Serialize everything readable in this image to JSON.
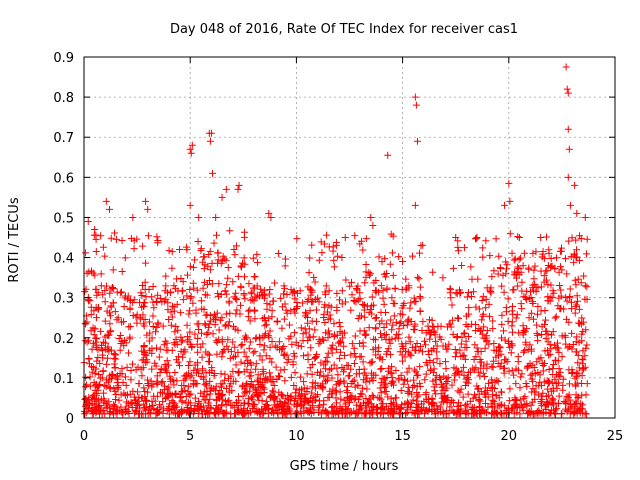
{
  "chart_data": {
    "type": "scatter",
    "title": "Day 048 of 2016, Rate Of TEC Index for receiver cas1",
    "xlabel": "GPS time / hours",
    "ylabel": "ROTI / TECUs",
    "xlim": [
      0,
      25
    ],
    "ylim": [
      0,
      0.9
    ],
    "xticks": [
      0,
      5,
      10,
      15,
      20,
      25
    ],
    "yticks": [
      0,
      0.1,
      0.2,
      0.3,
      0.4,
      0.5,
      0.6,
      0.7,
      0.8,
      0.9
    ],
    "ytick_labels": [
      "0",
      "0.1",
      "0.2",
      "0.3",
      "0.4",
      "0.5",
      "0.6",
      "0.7",
      "0.8",
      "0.9"
    ],
    "grid": true,
    "marker": "+",
    "marker_color": "#ff0000",
    "series": [
      {
        "name": "cas1 ROTI",
        "notable_points": [
          {
            "x": 0.2,
            "y": 0.49
          },
          {
            "x": 0.5,
            "y": 0.47
          },
          {
            "x": 1.05,
            "y": 0.54
          },
          {
            "x": 1.2,
            "y": 0.52
          },
          {
            "x": 2.3,
            "y": 0.5
          },
          {
            "x": 2.9,
            "y": 0.54
          },
          {
            "x": 3.0,
            "y": 0.52
          },
          {
            "x": 4.5,
            "y": 0.42
          },
          {
            "x": 5.0,
            "y": 0.67
          },
          {
            "x": 5.05,
            "y": 0.66
          },
          {
            "x": 5.1,
            "y": 0.68
          },
          {
            "x": 5.0,
            "y": 0.53
          },
          {
            "x": 5.4,
            "y": 0.5
          },
          {
            "x": 5.9,
            "y": 0.71
          },
          {
            "x": 6.0,
            "y": 0.71
          },
          {
            "x": 5.95,
            "y": 0.69
          },
          {
            "x": 6.05,
            "y": 0.61
          },
          {
            "x": 6.2,
            "y": 0.5
          },
          {
            "x": 6.5,
            "y": 0.55
          },
          {
            "x": 6.7,
            "y": 0.57
          },
          {
            "x": 7.3,
            "y": 0.58
          },
          {
            "x": 7.25,
            "y": 0.57
          },
          {
            "x": 8.7,
            "y": 0.51
          },
          {
            "x": 8.8,
            "y": 0.5
          },
          {
            "x": 12.3,
            "y": 0.45
          },
          {
            "x": 13.5,
            "y": 0.5
          },
          {
            "x": 13.6,
            "y": 0.48
          },
          {
            "x": 14.3,
            "y": 0.655
          },
          {
            "x": 15.6,
            "y": 0.8
          },
          {
            "x": 15.65,
            "y": 0.78
          },
          {
            "x": 15.7,
            "y": 0.69
          },
          {
            "x": 15.6,
            "y": 0.53
          },
          {
            "x": 17.5,
            "y": 0.45
          },
          {
            "x": 18.5,
            "y": 0.45
          },
          {
            "x": 19.8,
            "y": 0.53
          },
          {
            "x": 20.0,
            "y": 0.585
          },
          {
            "x": 20.05,
            "y": 0.54
          },
          {
            "x": 20.5,
            "y": 0.45
          },
          {
            "x": 21.5,
            "y": 0.45
          },
          {
            "x": 22.7,
            "y": 0.875
          },
          {
            "x": 22.75,
            "y": 0.82
          },
          {
            "x": 22.8,
            "y": 0.81
          },
          {
            "x": 22.8,
            "y": 0.72
          },
          {
            "x": 22.85,
            "y": 0.67
          },
          {
            "x": 22.8,
            "y": 0.6
          },
          {
            "x": 23.1,
            "y": 0.58
          },
          {
            "x": 22.9,
            "y": 0.53
          },
          {
            "x": 23.2,
            "y": 0.51
          },
          {
            "x": 23.6,
            "y": 0.5
          }
        ],
        "bulk_note": "Dense cloud of ROTI samples from 0 to ~23.7 h, mostly between 0.01 and 0.35 TECU/min",
        "bulk_range": {
          "x": [
            0,
            23.7
          ],
          "y": [
            0.01,
            0.35
          ]
        }
      }
    ]
  }
}
